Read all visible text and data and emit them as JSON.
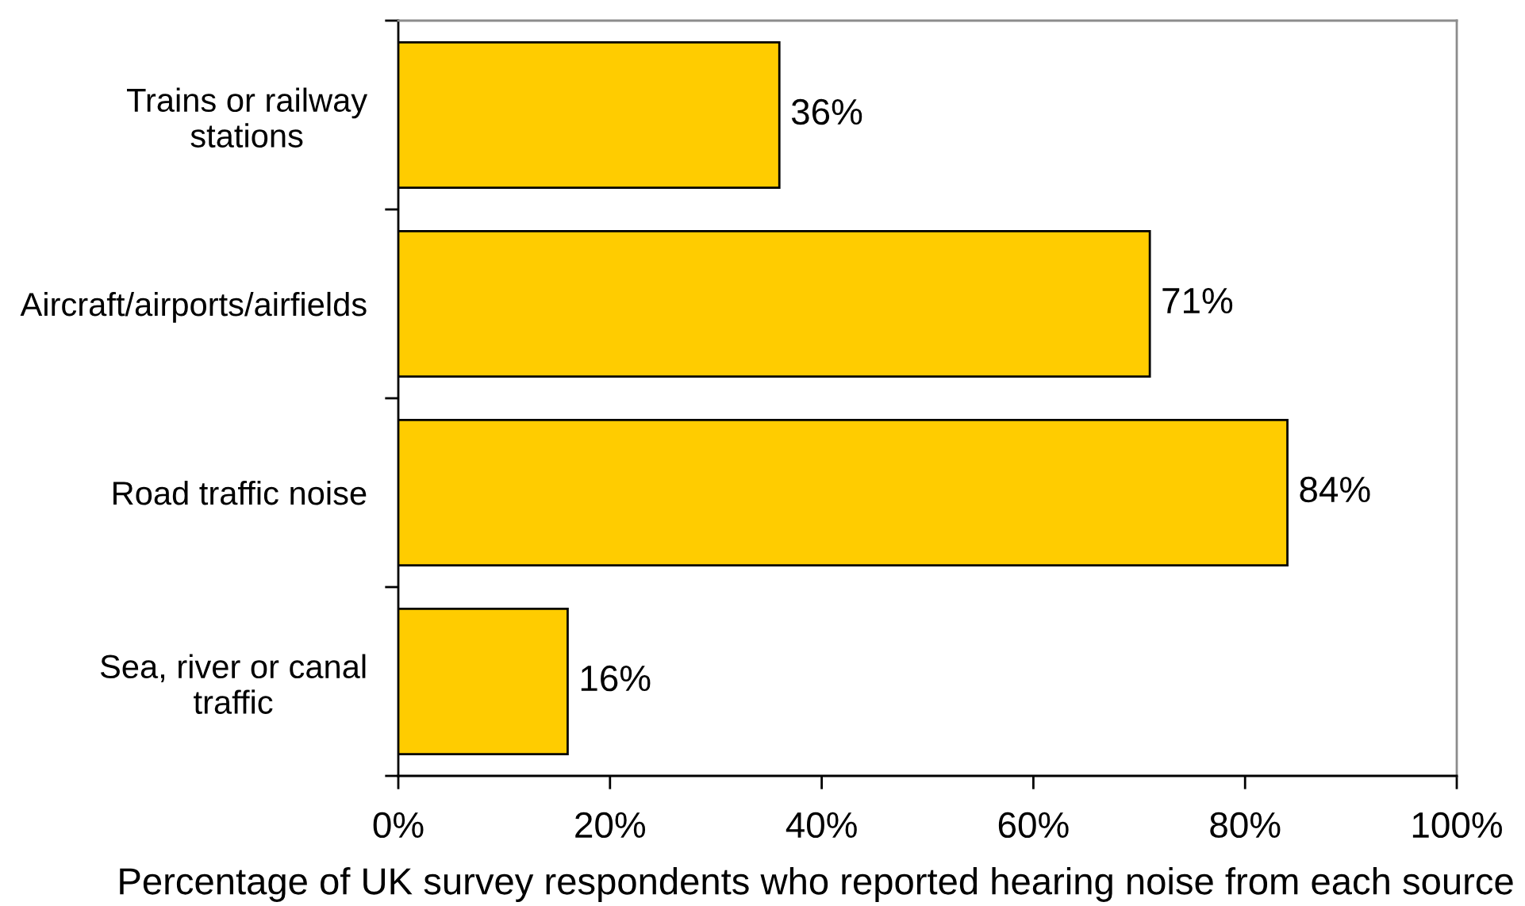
{
  "chart_data": {
    "type": "bar",
    "orientation": "horizontal",
    "xlabel": "Percentage of UK survey respondents who reported hearing noise from each source",
    "categories": [
      "Trains or railway\nstations",
      "Aircraft/airports/airfields",
      "Road traffic noise",
      "Sea, river or canal\ntraffic"
    ],
    "values": [
      36,
      71,
      84,
      16
    ],
    "value_labels": [
      "36%",
      "71%",
      "84%",
      "16%"
    ],
    "color": "#ffcc00",
    "xlim": [
      0,
      100
    ],
    "xticks": [
      {
        "value": 0,
        "label": "0%"
      },
      {
        "value": 20,
        "label": "20%"
      },
      {
        "value": 40,
        "label": "40%"
      },
      {
        "value": 60,
        "label": "60%"
      },
      {
        "value": 80,
        "label": "80%"
      },
      {
        "value": 100,
        "label": "100%"
      }
    ]
  }
}
